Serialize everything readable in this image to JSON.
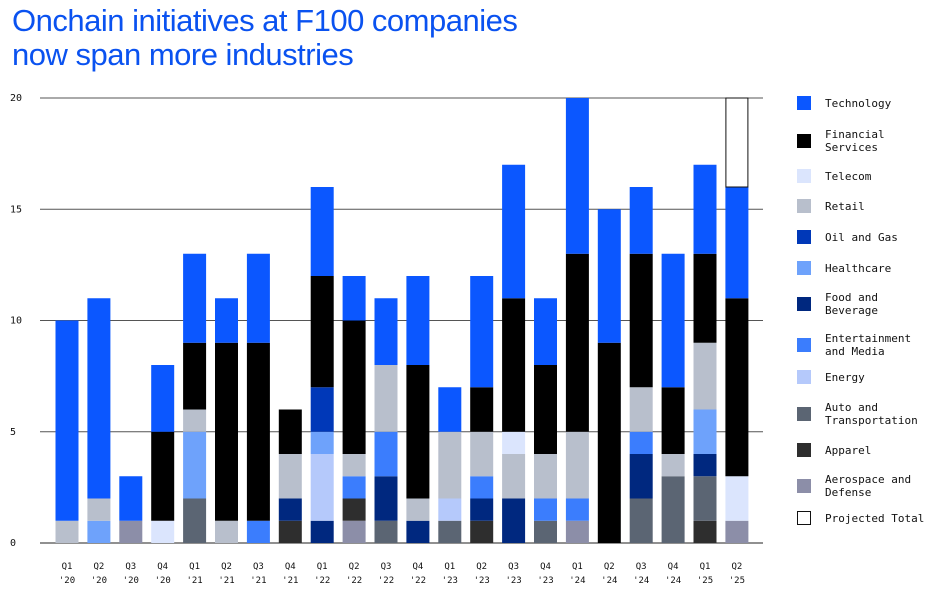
{
  "title_line1": "Onchain initiatives at F100 companies",
  "title_line2": "now span more industries",
  "chart_data": {
    "type": "bar",
    "stacked": true,
    "title": "Onchain initiatives at F100 companies now span more industries",
    "ylim": [
      0,
      20
    ],
    "yticks": [
      0,
      5,
      10,
      15,
      20
    ],
    "grid": "horizontal",
    "legend_position": "right",
    "categories": [
      [
        "Q1",
        "'20"
      ],
      [
        "Q2",
        "'20"
      ],
      [
        "Q3",
        "'20"
      ],
      [
        "Q4",
        "'20"
      ],
      [
        "Q1",
        "'21"
      ],
      [
        "Q2",
        "'21"
      ],
      [
        "Q3",
        "'21"
      ],
      [
        "Q4",
        "'21"
      ],
      [
        "Q1",
        "'22"
      ],
      [
        "Q2",
        "'22"
      ],
      [
        "Q3",
        "'22"
      ],
      [
        "Q4",
        "'22"
      ],
      [
        "Q1",
        "'23"
      ],
      [
        "Q2",
        "'23"
      ],
      [
        "Q3",
        "'23"
      ],
      [
        "Q4",
        "'23"
      ],
      [
        "Q1",
        "'24"
      ],
      [
        "Q2",
        "'24"
      ],
      [
        "Q3",
        "'24"
      ],
      [
        "Q4",
        "'24"
      ],
      [
        "Q1",
        "'25"
      ],
      [
        "Q2",
        "'25"
      ]
    ],
    "stack_order_bottom_to_top": [
      "Aerospace and Defense",
      "Apparel",
      "Auto and Transportation",
      "Food and Beverage",
      "Energy",
      "Entertainment and Media",
      "Healthcare",
      "Oil and Gas",
      "Retail",
      "Telecom",
      "Financial Services",
      "Technology",
      "Projected Total"
    ],
    "series": [
      {
        "name": "Technology",
        "color": "#0b57ff",
        "values": [
          9,
          9,
          2,
          3,
          4,
          2,
          4,
          0,
          4,
          2,
          3,
          4,
          2,
          5,
          6,
          3,
          7,
          6,
          3,
          6,
          4,
          5
        ]
      },
      {
        "name": "Financial Services",
        "color": "#000000",
        "values": [
          0,
          0,
          0,
          4,
          3,
          8,
          8,
          2,
          5,
          6,
          0,
          6,
          0,
          2,
          6,
          4,
          8,
          9,
          6,
          3,
          4,
          8
        ]
      },
      {
        "name": "Telecom",
        "color": "#dbe5fd",
        "values": [
          0,
          0,
          0,
          1,
          0,
          0,
          0,
          0,
          0,
          0,
          0,
          0,
          0,
          0,
          1,
          0,
          0,
          0,
          0,
          0,
          0,
          2
        ]
      },
      {
        "name": "Retail",
        "color": "#b8bfcc",
        "values": [
          1,
          1,
          0,
          0,
          1,
          1,
          0,
          2,
          0,
          1,
          3,
          1,
          3,
          2,
          2,
          2,
          3,
          0,
          2,
          1,
          3,
          0
        ]
      },
      {
        "name": "Oil and Gas",
        "color": "#0038b8",
        "values": [
          0,
          0,
          0,
          0,
          0,
          0,
          0,
          0,
          2,
          0,
          0,
          0,
          0,
          0,
          0,
          0,
          0,
          0,
          0,
          0,
          0,
          0
        ]
      },
      {
        "name": "Healthcare",
        "color": "#6ea2fb",
        "values": [
          0,
          1,
          0,
          0,
          3,
          0,
          0,
          0,
          1,
          0,
          0,
          0,
          0,
          0,
          0,
          0,
          0,
          0,
          0,
          0,
          2,
          0
        ]
      },
      {
        "name": "Food and Beverage",
        "color": "#00287f",
        "values": [
          0,
          0,
          0,
          0,
          0,
          0,
          0,
          1,
          1,
          0,
          2,
          1,
          0,
          1,
          2,
          0,
          0,
          0,
          2,
          0,
          1,
          0
        ]
      },
      {
        "name": "Entertainment and Media",
        "color": "#3b7dfd",
        "values": [
          0,
          0,
          0,
          0,
          0,
          0,
          1,
          0,
          0,
          1,
          2,
          0,
          0,
          1,
          0,
          1,
          1,
          0,
          1,
          0,
          0,
          0
        ]
      },
      {
        "name": "Energy",
        "color": "#b5c9fb",
        "values": [
          0,
          0,
          0,
          0,
          0,
          0,
          0,
          0,
          3,
          0,
          0,
          0,
          1,
          0,
          0,
          0,
          0,
          0,
          0,
          0,
          0,
          0
        ]
      },
      {
        "name": "Auto and Transportation",
        "color": "#5b6573",
        "values": [
          0,
          0,
          0,
          0,
          2,
          0,
          0,
          0,
          0,
          0,
          1,
          0,
          1,
          0,
          0,
          1,
          0,
          0,
          2,
          3,
          2,
          0
        ]
      },
      {
        "name": "Apparel",
        "color": "#2e2e2e",
        "values": [
          0,
          0,
          0,
          0,
          0,
          0,
          0,
          1,
          0,
          1,
          0,
          0,
          0,
          1,
          0,
          0,
          0,
          0,
          0,
          0,
          1,
          0
        ]
      },
      {
        "name": "Aerospace and Defense",
        "color": "#8c8ea8",
        "values": [
          0,
          0,
          1,
          0,
          0,
          0,
          0,
          0,
          0,
          1,
          0,
          0,
          0,
          0,
          0,
          0,
          1,
          0,
          0,
          0,
          0,
          1
        ]
      },
      {
        "name": "Projected Total",
        "color": "#ffffff",
        "outline": "#111111",
        "values": [
          0,
          0,
          0,
          0,
          0,
          0,
          0,
          0,
          0,
          0,
          0,
          0,
          0,
          0,
          0,
          0,
          0,
          0,
          0,
          0,
          0,
          4
        ]
      }
    ],
    "legend": [
      {
        "label": "Technology",
        "color": "#0b57ff"
      },
      {
        "label": "Financial Services",
        "color": "#000000"
      },
      {
        "label": "Telecom",
        "color": "#dbe5fd"
      },
      {
        "label": "Retail",
        "color": "#b8bfcc"
      },
      {
        "label": "Oil and Gas",
        "color": "#0038b8"
      },
      {
        "label": "Healthcare",
        "color": "#6ea2fb"
      },
      {
        "label": "Food and Beverage",
        "color": "#00287f"
      },
      {
        "label": "Entertainment and Media",
        "color": "#3b7dfd"
      },
      {
        "label": "Energy",
        "color": "#b5c9fb"
      },
      {
        "label": "Auto and Transportation",
        "color": "#5b6573"
      },
      {
        "label": "Apparel",
        "color": "#2e2e2e"
      },
      {
        "label": "Aerospace and Defense",
        "color": "#8c8ea8"
      },
      {
        "label": "Projected Total",
        "color": "#ffffff",
        "outline": "#111111"
      }
    ]
  }
}
